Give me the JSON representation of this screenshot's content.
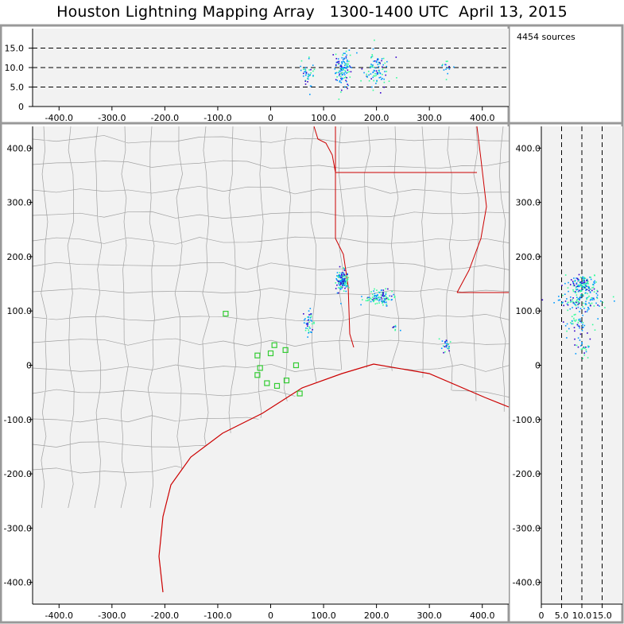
{
  "title": "Houston Lightning Mapping Array   1300-1400 UTC  April 13, 2015",
  "source_count_label": "4454 sources",
  "colors": {
    "panel_border": "#999999",
    "plot_bg": "#f2f2f2",
    "county_lines": "#8c8c8c",
    "state_coast_lines": "#cc0000",
    "stations": "#33cc33",
    "source_low": "#3300cc",
    "source_mid": "#0099ff",
    "source_high": "#33ff99"
  },
  "chart_data": [
    {
      "panel": "altitude-vs-x",
      "type": "scatter",
      "xlim": [
        -450,
        450
      ],
      "ylim": [
        0,
        20
      ],
      "x_ticks": [
        "-400.0",
        "-300.0",
        "-200.0",
        "-100.0",
        "0",
        "100.0",
        "200.0",
        "300.0",
        "400.0"
      ],
      "y_ticks": [
        "0",
        "5.0",
        "10.0",
        "15.0"
      ],
      "gridlines_y": [
        5,
        10,
        15
      ],
      "clusters": [
        {
          "x": 70,
          "z": 8.5,
          "sx": 6,
          "sz": 1.5,
          "n": 40
        },
        {
          "x": 135,
          "z": 9.5,
          "sx": 7,
          "sz": 2.2,
          "n": 120
        },
        {
          "x": 200,
          "z": 9,
          "sx": 12,
          "sz": 2.5,
          "n": 90
        },
        {
          "x": 330,
          "z": 10.5,
          "sx": 6,
          "sz": 1.2,
          "n": 14
        }
      ]
    },
    {
      "panel": "plan-view-map",
      "type": "scatter",
      "xlim": [
        -450,
        450
      ],
      "ylim": [
        -440,
        440
      ],
      "x_ticks": [
        "-400.0",
        "-300.0",
        "-200.0",
        "-100.0",
        "0",
        "100.0",
        "200.0",
        "300.0",
        "400.0"
      ],
      "y_ticks": [
        "400.0",
        "300.0",
        "200.0",
        "100.0",
        "0",
        "-100.0",
        "-200.0",
        "-300.0",
        "-400.0"
      ],
      "stations": [
        {
          "x": -85,
          "y": 95
        },
        {
          "x": -25,
          "y": 18
        },
        {
          "x": -20,
          "y": -5
        },
        {
          "x": -25,
          "y": -18
        },
        {
          "x": -7,
          "y": -33
        },
        {
          "x": 0,
          "y": 22
        },
        {
          "x": 7,
          "y": 37
        },
        {
          "x": 12,
          "y": -38
        },
        {
          "x": 28,
          "y": 28
        },
        {
          "x": 30,
          "y": -28
        },
        {
          "x": 48,
          "y": 0
        },
        {
          "x": 55,
          "y": -52
        }
      ],
      "clusters": [
        {
          "x": 135,
          "y": 155,
          "sx": 6,
          "sy": 10,
          "n": 150
        },
        {
          "x": 205,
          "y": 125,
          "sx": 12,
          "sy": 8,
          "n": 110
        },
        {
          "x": 72,
          "y": 80,
          "sx": 5,
          "sy": 12,
          "n": 40
        },
        {
          "x": 330,
          "y": 38,
          "sx": 6,
          "sy": 8,
          "n": 25
        },
        {
          "x": 235,
          "y": 70,
          "sx": 4,
          "sy": 5,
          "n": 8
        }
      ]
    },
    {
      "panel": "altitude-vs-y",
      "type": "scatter",
      "xlim": [
        0,
        20
      ],
      "ylim": [
        -440,
        440
      ],
      "x_ticks": [
        "0",
        "5.0",
        "10.0",
        "15.0"
      ],
      "y_ticks": [
        "400.0",
        "300.0",
        "200.0",
        "100.0",
        "0",
        "-100.0",
        "-200.0",
        "-300.0",
        "-400.0"
      ],
      "gridlines_x": [
        5,
        10,
        15
      ],
      "clusters": [
        {
          "z": 10,
          "y": 150,
          "sz": 1.8,
          "sy": 8,
          "n": 140
        },
        {
          "z": 9.5,
          "y": 120,
          "sz": 2.5,
          "sy": 10,
          "n": 110
        },
        {
          "z": 9,
          "y": 80,
          "sz": 1.5,
          "sy": 12,
          "n": 50
        },
        {
          "z": 10,
          "y": 35,
          "sz": 1.2,
          "sy": 8,
          "n": 25
        }
      ]
    }
  ]
}
